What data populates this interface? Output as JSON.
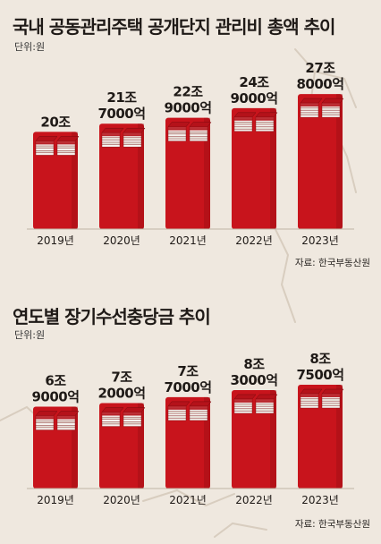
{
  "colors": {
    "background": "#efe8df",
    "bar": "#c8141c",
    "bar_dark": "#8e0c10",
    "book_white": "#f6f3ef",
    "book_red": "#b5121a",
    "text": "#1f1a17"
  },
  "icons": {
    "bar_top": "stacked-banknotes-icon"
  },
  "chart_data": [
    {
      "type": "bar",
      "title": "국내 공동관리주택 공개단지 관리비 총액 추이",
      "unit_label": "단위:원",
      "source": "자료: 한국부동산원",
      "categories": [
        "2019년",
        "2020년",
        "2021년",
        "2022년",
        "2023년"
      ],
      "values": [
        20,
        21.7,
        22.9,
        24.9,
        27.8
      ],
      "value_unit": "조 원",
      "data_labels": [
        [
          "20조"
        ],
        [
          "21조",
          "7000억"
        ],
        [
          "22조",
          "9000억"
        ],
        [
          "24조",
          "9000억"
        ],
        [
          "27조",
          "8000억"
        ]
      ],
      "ylim": [
        0,
        28
      ],
      "grid": false,
      "legend": "none"
    },
    {
      "type": "bar",
      "title": "연도별 장기수선충당금 추이",
      "unit_label": "단위:원",
      "source": "자료: 한국부동산원",
      "categories": [
        "2019년",
        "2020년",
        "2021년",
        "2022년",
        "2023년"
      ],
      "values": [
        6.9,
        7.2,
        7.7,
        8.3,
        8.75
      ],
      "value_unit": "조 원",
      "data_labels": [
        [
          "6조",
          "9000억"
        ],
        [
          "7조",
          "2000억"
        ],
        [
          "7조",
          "7000억"
        ],
        [
          "8조",
          "3000억"
        ],
        [
          "8조",
          "7500억"
        ]
      ],
      "ylim": [
        0,
        8.75
      ],
      "grid": false,
      "legend": "none"
    }
  ]
}
